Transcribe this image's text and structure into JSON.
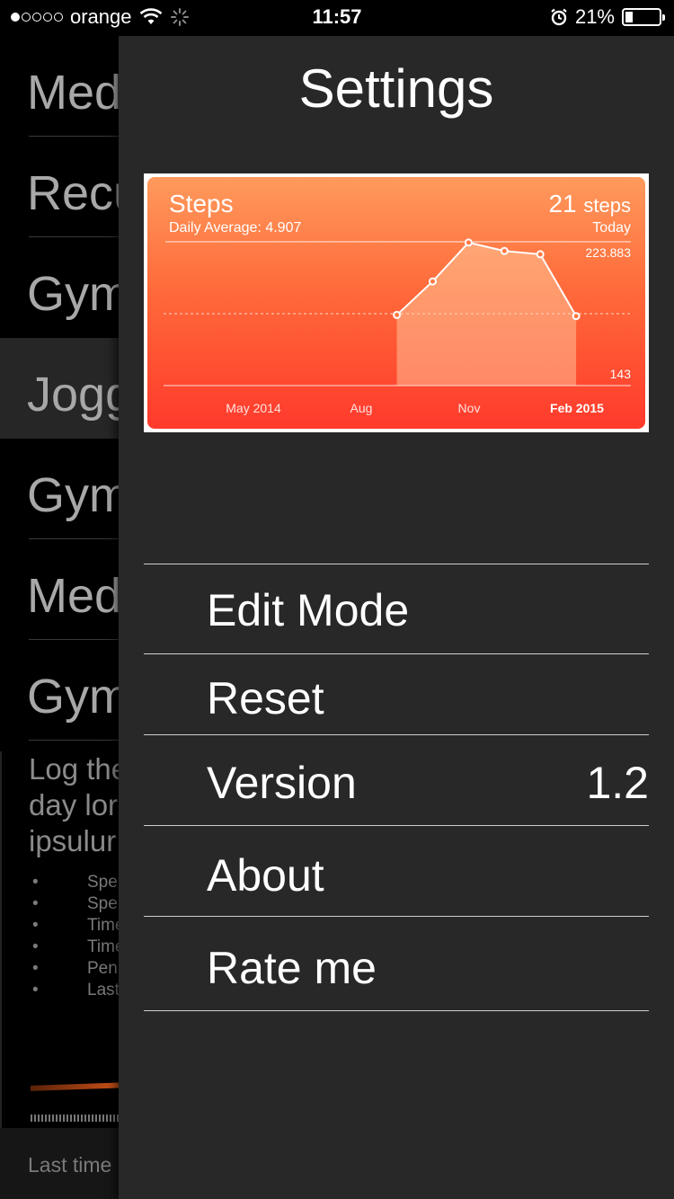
{
  "status_bar": {
    "carrier": "orange",
    "time": "11:57",
    "battery": "21%",
    "battery_level": 0.21,
    "signal_bars": 1,
    "icons": [
      "wifi-icon",
      "spinner-icon",
      "alarm-icon",
      "battery-icon"
    ]
  },
  "background_list": {
    "items": [
      "Med",
      "Recu",
      "Gym",
      "Jogg",
      "Gym",
      "Med",
      "Gym"
    ],
    "selected_index": 3,
    "detail_lines": [
      "Log the",
      "day lor",
      "ipsulur"
    ],
    "bullets": [
      "Spe",
      "Spe",
      "Time",
      "Time",
      "Pen",
      "Last"
    ],
    "footer": "Last time"
  },
  "settings": {
    "title": "Settings",
    "steps_card": {
      "title": "Steps",
      "subtitle": "Daily Average: 4.907",
      "value": "21",
      "unit": "steps",
      "period": "Today"
    },
    "menu": [
      {
        "label": "Edit Mode",
        "value": ""
      },
      {
        "label": "Reset",
        "value": ""
      },
      {
        "label": "Version",
        "value": "1.2"
      },
      {
        "label": "About",
        "value": ""
      },
      {
        "label": "Rate me",
        "value": ""
      }
    ]
  },
  "chart_data": {
    "type": "area",
    "title": "Steps",
    "x": [
      "2014-09",
      "2014-10",
      "2014-11",
      "2014-12",
      "2015-01",
      "2015-02"
    ],
    "values": [
      5300,
      29500,
      215000,
      140000,
      118000,
      5000
    ],
    "y_max_label": "223.883",
    "y_min_label": "143",
    "x_tick_labels": [
      "May 2014",
      "Aug",
      "Nov",
      "Feb 2015"
    ],
    "highlighted_tick": "Feb 2015",
    "ylim": [
      143,
      223883
    ],
    "y_scale": "log",
    "grid": "top, middle dashed, bottom lines",
    "colors": {
      "background_top": "#ff9a5c",
      "background_bottom": "#ff3a2c",
      "line": "#ffffff"
    }
  }
}
